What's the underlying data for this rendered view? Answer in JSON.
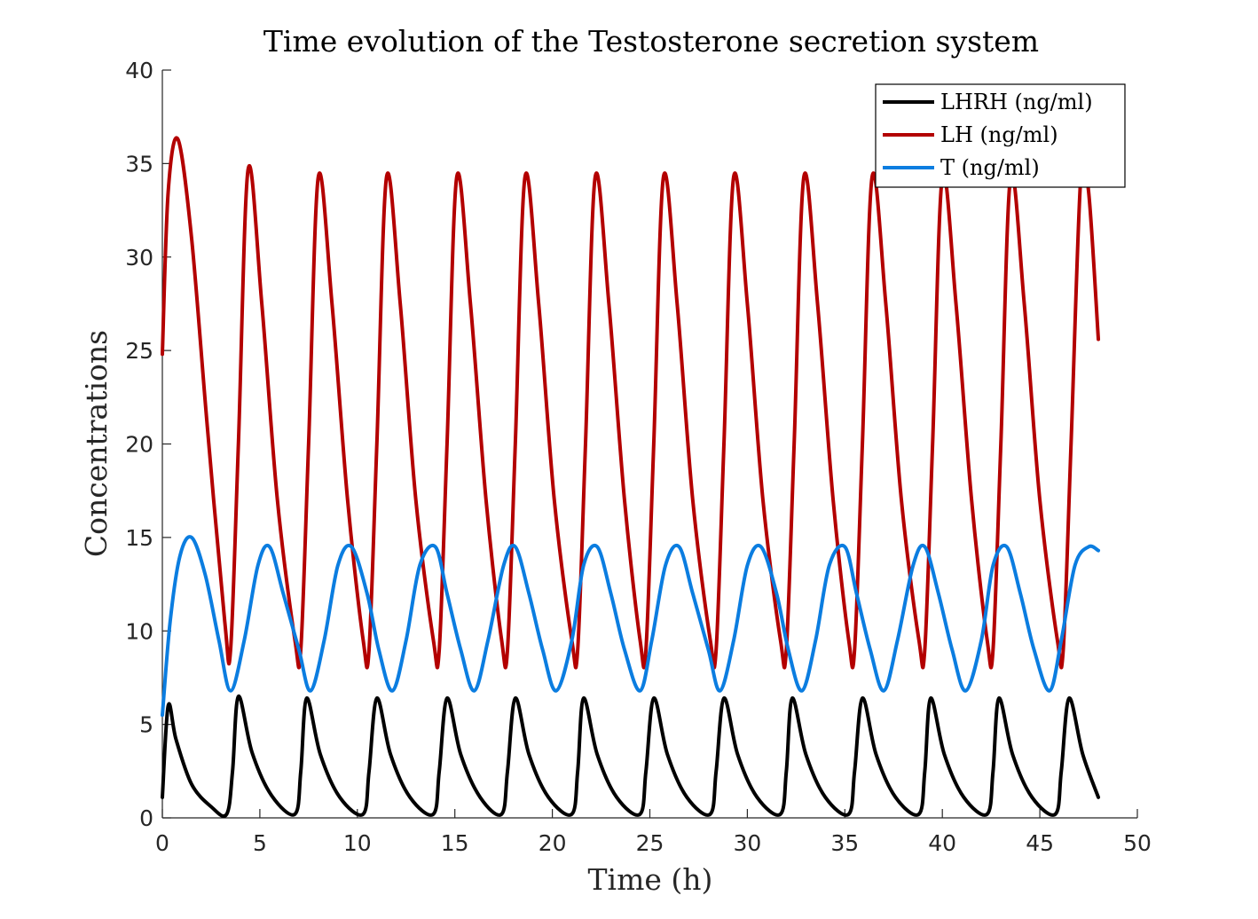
{
  "chart_data": {
    "type": "line",
    "title": "Time evolution of the Testosterone secretion system",
    "xlabel": "Time (h)",
    "ylabel": "Concentrations",
    "xlim": [
      0,
      50
    ],
    "ylim": [
      0,
      40
    ],
    "xticks": [
      "0",
      "5",
      "10",
      "15",
      "20",
      "25",
      "30",
      "35",
      "40",
      "45",
      "50"
    ],
    "yticks": [
      "0",
      "5",
      "10",
      "15",
      "20",
      "25",
      "30",
      "35",
      "40"
    ],
    "legend_position": "top-right",
    "grid": false,
    "series": [
      {
        "name": "LHRH (ng/ml)",
        "color": "#000000",
        "x": [
          0,
          0.3,
          0.7,
          1.5,
          2.5,
          3.3,
          3.6,
          3.9,
          4.6,
          5.6,
          6.8,
          7.1,
          7.4,
          8.1,
          9.1,
          10.3,
          10.6,
          11.0,
          11.7,
          12.7,
          13.9,
          14.2,
          14.6,
          15.3,
          16.3,
          17.4,
          17.7,
          18.1,
          18.8,
          19.8,
          21.0,
          21.3,
          21.6,
          22.3,
          23.3,
          24.5,
          24.8,
          25.2,
          25.9,
          26.9,
          28.1,
          28.4,
          28.8,
          29.5,
          30.5,
          31.7,
          32.0,
          32.3,
          33.0,
          34.0,
          35.2,
          35.5,
          35.9,
          36.6,
          37.6,
          38.8,
          39.1,
          39.4,
          40.1,
          41.1,
          42.3,
          42.6,
          42.9,
          43.6,
          44.6,
          45.8,
          46.1,
          46.5,
          47.2,
          48.0
        ],
        "values": [
          1.1,
          6.0,
          4.2,
          1.8,
          0.6,
          0.2,
          2.5,
          6.5,
          3.5,
          1.2,
          0.2,
          2.5,
          6.4,
          3.4,
          1.1,
          0.2,
          2.5,
          6.4,
          3.4,
          1.1,
          0.2,
          2.5,
          6.4,
          3.4,
          1.1,
          0.2,
          2.5,
          6.4,
          3.4,
          1.1,
          0.2,
          2.5,
          6.4,
          3.4,
          1.1,
          0.2,
          2.5,
          6.4,
          3.4,
          1.1,
          0.2,
          2.5,
          6.4,
          3.4,
          1.1,
          0.2,
          2.5,
          6.4,
          3.4,
          1.1,
          0.2,
          2.5,
          6.4,
          3.4,
          1.1,
          0.2,
          2.5,
          6.4,
          3.4,
          1.1,
          0.2,
          2.5,
          6.4,
          3.4,
          1.1,
          0.2,
          2.5,
          6.4,
          3.4,
          1.1
        ]
      },
      {
        "name": "LH (ng/ml)",
        "color": "#b30000",
        "x": [
          0,
          0.3,
          0.8,
          1.5,
          2.3,
          3.2,
          3.5,
          3.9,
          4.4,
          5.1,
          5.9,
          6.8,
          7.1,
          7.5,
          8.0,
          8.7,
          9.5,
          10.3,
          10.6,
          11.0,
          11.5,
          12.2,
          13.0,
          13.9,
          14.2,
          14.6,
          15.1,
          15.8,
          16.6,
          17.4,
          17.7,
          18.1,
          18.6,
          19.3,
          20.1,
          21.0,
          21.3,
          21.7,
          22.2,
          22.9,
          23.7,
          24.5,
          24.8,
          25.2,
          25.7,
          26.4,
          27.2,
          28.1,
          28.4,
          28.8,
          29.3,
          30.0,
          30.8,
          31.7,
          32.0,
          32.4,
          32.9,
          33.6,
          34.4,
          35.2,
          35.5,
          35.9,
          36.4,
          37.1,
          37.9,
          38.8,
          39.1,
          39.5,
          40.0,
          40.7,
          41.5,
          42.3,
          42.6,
          43.0,
          43.5,
          44.2,
          45.0,
          45.9,
          46.2,
          46.6,
          47.1,
          47.5,
          48.0
        ],
        "values": [
          24.8,
          33.5,
          36.3,
          31.0,
          21.0,
          10.5,
          9.0,
          20.0,
          34.7,
          27.5,
          17.0,
          9.5,
          9.0,
          20.0,
          34.3,
          27.5,
          17.0,
          9.5,
          9.0,
          20.0,
          34.3,
          27.5,
          17.0,
          9.5,
          9.0,
          20.0,
          34.3,
          27.5,
          17.0,
          9.5,
          9.0,
          20.0,
          34.3,
          27.5,
          17.0,
          9.5,
          9.0,
          20.0,
          34.3,
          27.5,
          17.0,
          9.5,
          9.0,
          20.0,
          34.3,
          27.5,
          17.0,
          9.5,
          9.0,
          20.0,
          34.3,
          27.5,
          17.0,
          9.5,
          9.0,
          20.0,
          34.3,
          27.5,
          17.0,
          9.5,
          9.0,
          20.0,
          34.3,
          27.5,
          17.0,
          9.5,
          9.0,
          20.0,
          34.3,
          27.5,
          17.0,
          9.5,
          9.0,
          20.0,
          34.3,
          27.5,
          17.0,
          9.5,
          9.0,
          20.0,
          34.3,
          33.5,
          25.6
        ]
      },
      {
        "name": "T (ng/ml)",
        "color": "#0b7de0",
        "x": [
          0,
          0.4,
          0.9,
          1.5,
          2.2,
          2.9,
          3.5,
          4.2,
          4.9,
          5.5,
          6.2,
          7.0,
          7.6,
          8.3,
          9.0,
          9.7,
          10.5,
          11.1,
          11.8,
          12.5,
          13.2,
          14.0,
          14.6,
          15.3,
          16.0,
          16.7,
          17.5,
          18.1,
          18.8,
          19.5,
          20.2,
          21.0,
          21.6,
          22.3,
          23.0,
          23.7,
          24.5,
          25.1,
          25.8,
          26.5,
          27.2,
          28.0,
          28.6,
          29.3,
          30.0,
          30.7,
          31.5,
          32.1,
          32.8,
          33.5,
          34.2,
          35.0,
          35.6,
          36.3,
          37.0,
          37.7,
          38.5,
          39.1,
          39.8,
          40.5,
          41.2,
          42.0,
          42.6,
          43.3,
          44.0,
          44.7,
          45.5,
          46.1,
          46.8,
          47.5,
          48.0
        ],
        "values": [
          5.5,
          10.5,
          14.0,
          15.0,
          13.0,
          9.5,
          6.8,
          9.5,
          13.5,
          14.5,
          12.0,
          9.0,
          6.8,
          9.5,
          13.5,
          14.5,
          12.0,
          9.0,
          6.8,
          9.5,
          13.5,
          14.5,
          12.0,
          9.0,
          6.8,
          9.5,
          13.5,
          14.5,
          12.0,
          9.0,
          6.8,
          9.5,
          13.5,
          14.5,
          12.0,
          9.0,
          6.8,
          9.5,
          13.5,
          14.5,
          12.0,
          9.0,
          6.8,
          9.5,
          13.5,
          14.5,
          12.0,
          9.0,
          6.8,
          9.5,
          13.5,
          14.5,
          12.0,
          9.0,
          6.8,
          9.5,
          13.5,
          14.5,
          12.0,
          9.0,
          6.8,
          9.5,
          13.5,
          14.5,
          12.0,
          9.0,
          6.8,
          9.5,
          13.5,
          14.5,
          14.3
        ]
      }
    ]
  }
}
